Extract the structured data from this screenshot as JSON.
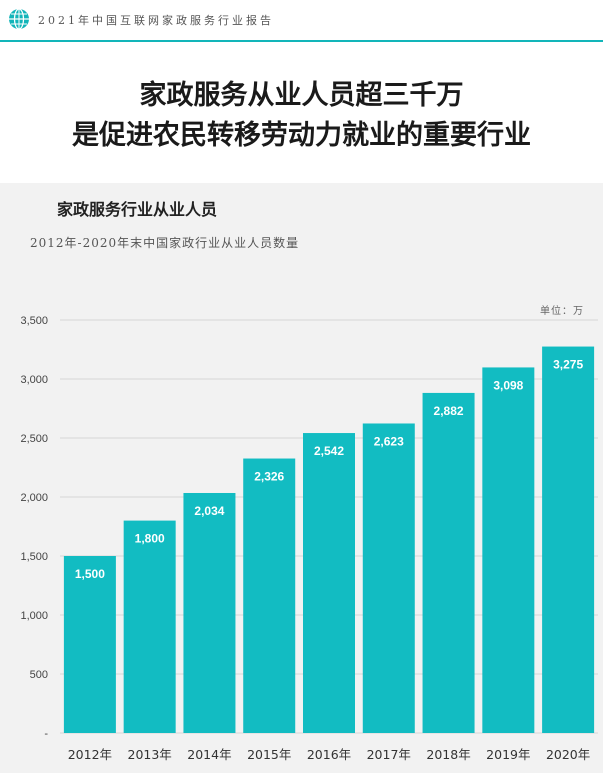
{
  "header": {
    "icon": "globe-icon",
    "text": "2021年中国互联网家政服务行业报告",
    "accent_color": "#12b5b9"
  },
  "hero": {
    "line1": "家政服务从业人员超三千万",
    "line2": "是促进农民转移劳动力就业的重要行业"
  },
  "chart_data": {
    "type": "bar",
    "title": "家政服务行业从业人员",
    "subtitle": "2012年-2020年末中国家政行业从业人员数量",
    "unit_label": "单位：万",
    "categories": [
      "2012年",
      "2013年",
      "2014年",
      "2015年",
      "2016年",
      "2017年",
      "2018年",
      "2019年",
      "2020年"
    ],
    "values": [
      1500,
      1800,
      2034,
      2326,
      2542,
      2623,
      2882,
      3098,
      3275
    ],
    "value_labels": [
      "1,500",
      "1,800",
      "2,034",
      "2,326",
      "2,542",
      "2,623",
      "2,882",
      "3,098",
      "3,275"
    ],
    "yticks": [
      "-",
      "500",
      "1,000",
      "1,500",
      "2,000",
      "2,500",
      "3,000",
      "3,500"
    ],
    "ylim": [
      0,
      3500
    ],
    "grid": true,
    "bar_color": "#12bcc2"
  }
}
